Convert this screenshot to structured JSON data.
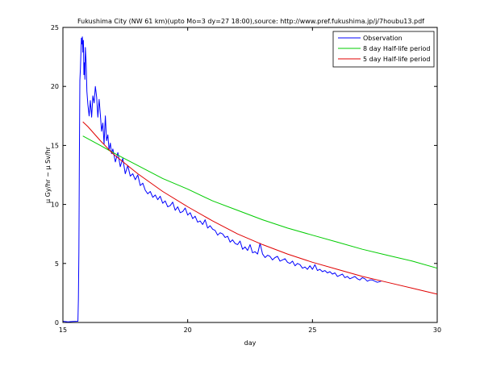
{
  "chart_data": {
    "type": "line",
    "title": "Fukushima City (NW 61 km)(upto Mo=3 dy=27 18:00),source: http://www.pref.fukushima.jp/j/7houbu13.pdf",
    "xlabel": "day",
    "ylabel": "μ Gy/hr ~ μ Sv/hr",
    "xlim": [
      15,
      30
    ],
    "ylim": [
      0,
      25
    ],
    "xticks": [
      15,
      20,
      25,
      30
    ],
    "yticks": [
      0,
      5,
      10,
      15,
      20,
      25
    ],
    "grid": false,
    "legend_position": "top-right",
    "series": [
      {
        "name": "Observation",
        "color": "#0000ff",
        "x": [
          15.0,
          15.2,
          15.4,
          15.6,
          15.62,
          15.64,
          15.66,
          15.68,
          15.7,
          15.72,
          15.74,
          15.76,
          15.78,
          15.8,
          15.82,
          15.84,
          15.86,
          15.88,
          15.9,
          15.93,
          15.96,
          16.0,
          16.05,
          16.1,
          16.15,
          16.2,
          16.25,
          16.3,
          16.35,
          16.4,
          16.45,
          16.5,
          16.55,
          16.6,
          16.65,
          16.7,
          16.75,
          16.8,
          16.85,
          16.9,
          16.95,
          17.0,
          17.1,
          17.2,
          17.3,
          17.4,
          17.5,
          17.6,
          17.7,
          17.8,
          17.9,
          18.0,
          18.1,
          18.2,
          18.3,
          18.4,
          18.5,
          18.6,
          18.7,
          18.8,
          18.9,
          19.0,
          19.1,
          19.2,
          19.3,
          19.4,
          19.5,
          19.6,
          19.7,
          19.8,
          19.9,
          20.0,
          20.1,
          20.2,
          20.3,
          20.4,
          20.5,
          20.6,
          20.7,
          20.8,
          20.9,
          21.0,
          21.1,
          21.2,
          21.3,
          21.4,
          21.5,
          21.6,
          21.7,
          21.8,
          21.9,
          22.0,
          22.1,
          22.2,
          22.3,
          22.4,
          22.5,
          22.6,
          22.7,
          22.8,
          22.9,
          23.0,
          23.1,
          23.2,
          23.3,
          23.4,
          23.5,
          23.6,
          23.7,
          23.8,
          23.9,
          24.0,
          24.1,
          24.2,
          24.3,
          24.4,
          24.5,
          24.6,
          24.7,
          24.8,
          24.9,
          25.0,
          25.1,
          25.2,
          25.3,
          25.4,
          25.5,
          25.6,
          25.7,
          25.8,
          25.9,
          26.0,
          26.1,
          26.2,
          26.3,
          26.4,
          26.5,
          26.6,
          26.7,
          26.8,
          26.9,
          27.0,
          27.1,
          27.2,
          27.3,
          27.4,
          27.5,
          27.6,
          27.75
        ],
        "values": [
          0.1,
          0.05,
          0.08,
          0.1,
          2.0,
          6.0,
          14.0,
          20.5,
          21.5,
          22.8,
          24.1,
          23.6,
          24.2,
          22.9,
          23.9,
          21.0,
          22.0,
          20.6,
          23.3,
          22.0,
          19.6,
          18.5,
          17.5,
          18.8,
          17.4,
          19.2,
          18.6,
          20.0,
          19.1,
          17.4,
          18.9,
          17.6,
          16.2,
          16.9,
          15.1,
          17.5,
          15.4,
          15.9,
          14.6,
          15.2,
          14.3,
          14.7,
          13.6,
          14.4,
          13.2,
          13.9,
          12.6,
          13.3,
          12.4,
          12.6,
          12.1,
          12.5,
          11.6,
          11.8,
          11.2,
          10.9,
          11.1,
          10.6,
          10.8,
          10.4,
          10.7,
          10.1,
          10.3,
          9.8,
          9.9,
          10.2,
          9.5,
          9.8,
          9.3,
          9.4,
          9.7,
          9.1,
          9.3,
          8.8,
          9.0,
          8.5,
          8.6,
          8.3,
          8.7,
          8.0,
          8.2,
          7.9,
          7.8,
          7.4,
          7.6,
          7.5,
          7.2,
          7.3,
          6.8,
          7.0,
          6.7,
          6.6,
          6.9,
          6.2,
          6.4,
          6.1,
          6.6,
          5.9,
          6.0,
          5.8,
          6.7,
          5.8,
          5.5,
          5.7,
          5.6,
          5.3,
          5.5,
          5.6,
          5.2,
          5.3,
          5.4,
          5.1,
          5.0,
          5.2,
          4.8,
          5.0,
          4.9,
          4.6,
          4.7,
          4.5,
          4.8,
          4.5,
          4.9,
          4.4,
          4.5,
          4.3,
          4.4,
          4.2,
          4.3,
          4.1,
          4.2,
          3.9,
          4.0,
          4.1,
          3.8,
          3.9,
          3.7,
          3.8,
          3.9,
          3.7,
          3.6,
          3.8,
          3.7,
          3.5,
          3.6,
          3.6,
          3.5,
          3.4,
          3.5
        ]
      },
      {
        "name": "8 day Half-life period",
        "color": "#00cc00",
        "x": [
          15.8,
          16.5,
          17.0,
          18.0,
          19.0,
          20.0,
          21.0,
          22.0,
          23.0,
          24.0,
          25.0,
          26.0,
          27.0,
          28.0,
          29.0,
          30.0
        ],
        "values": [
          15.8,
          15.0,
          14.4,
          13.3,
          12.2,
          11.3,
          10.3,
          9.5,
          8.7,
          8.0,
          7.4,
          6.8,
          6.2,
          5.7,
          5.2,
          4.6
        ]
      },
      {
        "name": "5 day Half-life period",
        "color": "#e00000",
        "x": [
          15.8,
          16.0,
          16.5,
          17.0,
          18.0,
          19.0,
          20.0,
          21.0,
          22.0,
          23.0,
          24.0,
          25.0,
          26.0,
          27.0,
          28.0,
          29.0,
          30.0
        ],
        "values": [
          17.0,
          16.6,
          15.4,
          14.3,
          12.6,
          11.1,
          9.8,
          8.6,
          7.5,
          6.6,
          5.8,
          5.1,
          4.5,
          3.9,
          3.4,
          2.9,
          2.4
        ]
      }
    ]
  }
}
